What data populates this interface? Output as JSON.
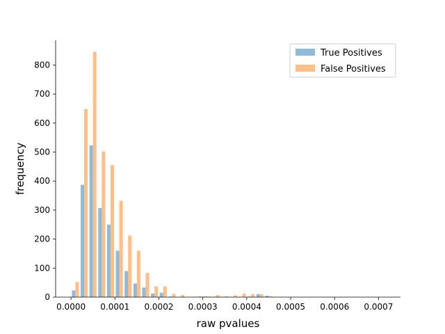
{
  "chart_data": {
    "type": "bar",
    "title": "",
    "xlabel": "raw pvalues",
    "ylabel": "frequency",
    "xlim": [
      -3.5e-05,
      0.00075
    ],
    "ylim": [
      0,
      885
    ],
    "xticks": [
      0,
      0.0001,
      0.0002,
      0.0003,
      0.0004,
      0.0005,
      0.0006,
      0.0007
    ],
    "xtick_labels": [
      "0.0000",
      "0.0001",
      "0.0002",
      "0.0003",
      "0.0004",
      "0.0005",
      "0.0006",
      "0.0007"
    ],
    "yticks": [
      0,
      100,
      200,
      300,
      400,
      500,
      600,
      700,
      800
    ],
    "yticks_labels": [
      "0",
      "100",
      "200",
      "300",
      "400",
      "500",
      "600",
      "700",
      "800"
    ],
    "bin_edges": [
      0.0,
      2e-05,
      4e-05,
      6e-05,
      8e-05,
      0.0001,
      0.00012,
      0.00014,
      0.00016,
      0.00018,
      0.0002,
      0.00022,
      0.00024,
      0.00026,
      0.00028,
      0.0003,
      0.00032,
      0.00034,
      0.00036,
      0.00038,
      0.0004,
      0.00042,
      0.00044,
      0.00046,
      0.00048,
      0.0005,
      0.00052,
      0.00054,
      0.00056,
      0.00058,
      0.0006,
      0.00062,
      0.00064,
      0.00066,
      0.00068,
      0.0007,
      0.00072
    ],
    "series": [
      {
        "name": "True Positives",
        "color": "#1f77b4",
        "opacity": 0.5,
        "values": [
          23,
          387,
          523,
          307,
          250,
          160,
          90,
          47,
          33,
          12,
          15,
          2,
          0,
          0,
          0,
          2,
          1,
          0,
          0,
          1,
          2,
          10,
          5,
          0,
          0,
          0,
          0,
          0,
          0,
          0,
          0,
          0,
          0,
          0,
          0,
          0
        ]
      },
      {
        "name": "False Positives",
        "color": "#ff7f0e",
        "opacity": 0.5,
        "values": [
          52,
          648,
          845,
          502,
          455,
          332,
          212,
          160,
          83,
          37,
          37,
          11,
          7,
          0,
          3,
          2,
          7,
          3,
          6,
          12,
          10,
          10,
          3,
          0,
          0,
          0,
          0,
          0,
          0,
          0,
          0,
          0,
          0,
          0,
          0,
          0
        ]
      }
    ],
    "legend": {
      "position": "top-right"
    },
    "grid": false
  }
}
